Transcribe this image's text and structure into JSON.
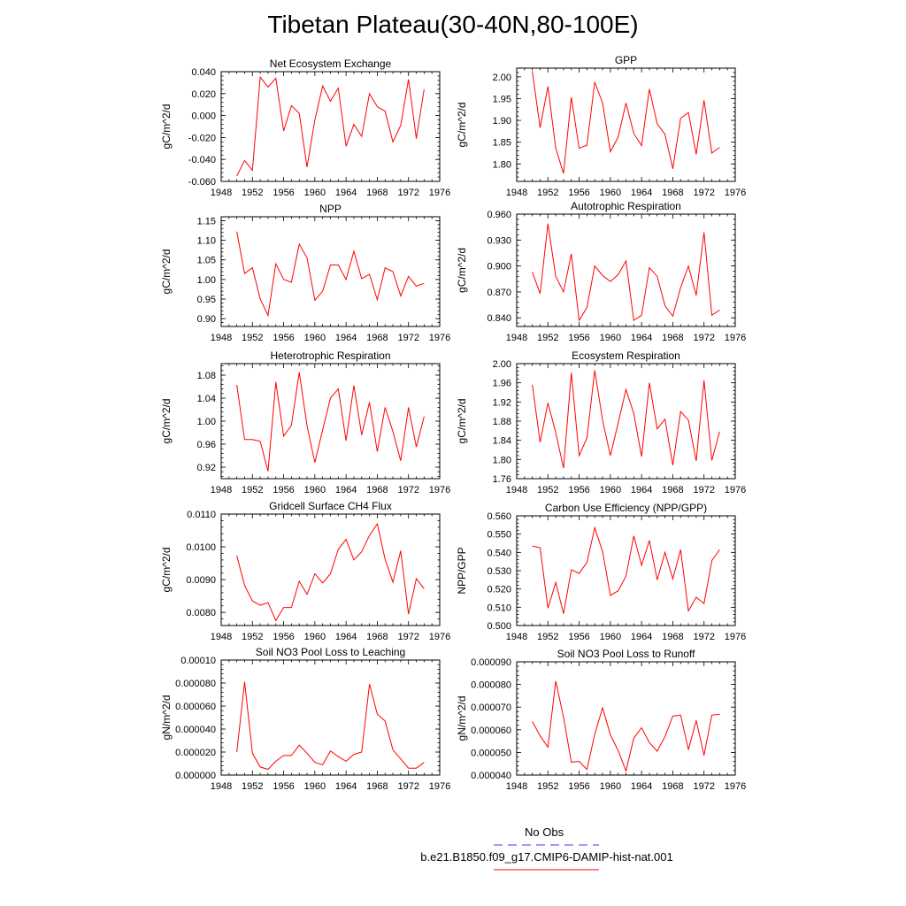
{
  "title": "Tibetan Plateau(30-40N,80-100E)",
  "legend": {
    "obs_label": "No Obs",
    "obs_color": "#3a3aff",
    "model_label": "b.e21.B1850.f09_g17.CMIP6-DAMIP-hist-nat.001",
    "model_color": "#ff0000"
  },
  "chart_data": [
    {
      "type": "line",
      "title": "Net Ecosystem Exchange",
      "ylabel": "gC/m^2/d",
      "xlim": [
        1948,
        1976
      ],
      "xticks": [
        1948,
        1952,
        1956,
        1960,
        1964,
        1968,
        1972,
        1976
      ],
      "ylim": [
        -0.06,
        0.04
      ],
      "yticks": [
        -0.06,
        -0.04,
        -0.02,
        0.0,
        0.02,
        0.04
      ],
      "ytick_labels": [
        "-0.060",
        "-0.040",
        "-0.020",
        "0.000",
        "0.020",
        "0.040"
      ],
      "x": [
        1950,
        1951,
        1952,
        1953,
        1954,
        1955,
        1956,
        1957,
        1958,
        1959,
        1960,
        1961,
        1962,
        1963,
        1964,
        1965,
        1966,
        1967,
        1968,
        1969,
        1970,
        1971,
        1972,
        1973,
        1974
      ],
      "series": [
        {
          "values": [
            -0.055,
            -0.041,
            -0.05,
            0.035,
            0.026,
            0.034,
            -0.014,
            0.009,
            0.002,
            -0.047,
            -0.004,
            0.027,
            0.013,
            0.025,
            -0.028,
            -0.008,
            -0.019,
            0.02,
            0.008,
            0.004,
            -0.024,
            -0.009,
            0.033,
            -0.021,
            0.024
          ]
        }
      ]
    },
    {
      "type": "line",
      "title": "GPP",
      "ylabel": "gC/m^2/d",
      "xlim": [
        1948,
        1976
      ],
      "xticks": [
        1948,
        1952,
        1956,
        1960,
        1964,
        1968,
        1972,
        1976
      ],
      "ylim": [
        1.76,
        2.02
      ],
      "yticks": [
        1.8,
        1.85,
        1.9,
        1.95,
        2.0
      ],
      "ytick_labels": [
        "1.80",
        "1.85",
        "1.90",
        "1.95",
        "2.00"
      ],
      "x": [
        1950,
        1951,
        1952,
        1953,
        1954,
        1955,
        1956,
        1957,
        1958,
        1959,
        1960,
        1961,
        1962,
        1963,
        1964,
        1965,
        1966,
        1967,
        1968,
        1969,
        1970,
        1971,
        1972,
        1973,
        1974
      ],
      "series": [
        {
          "values": [
            2.013,
            1.883,
            1.978,
            1.836,
            1.778,
            1.953,
            1.836,
            1.843,
            1.988,
            1.94,
            1.828,
            1.862,
            1.94,
            1.87,
            1.842,
            1.972,
            1.892,
            1.868,
            1.789,
            1.905,
            1.918,
            1.822,
            1.946,
            1.825,
            1.838
          ]
        }
      ]
    },
    {
      "type": "line",
      "title": "NPP",
      "ylabel": "gC/m^2/d",
      "xlim": [
        1948,
        1976
      ],
      "xticks": [
        1948,
        1952,
        1956,
        1960,
        1964,
        1968,
        1972,
        1976
      ],
      "ylim": [
        0.88,
        1.16
      ],
      "yticks": [
        0.9,
        0.95,
        1.0,
        1.05,
        1.1,
        1.15
      ],
      "ytick_labels": [
        "0.90",
        "0.95",
        "1.00",
        "1.05",
        "1.10",
        "1.15"
      ],
      "x": [
        1950,
        1951,
        1952,
        1953,
        1954,
        1955,
        1956,
        1957,
        1958,
        1959,
        1960,
        1961,
        1962,
        1963,
        1964,
        1965,
        1966,
        1967,
        1968,
        1969,
        1970,
        1971,
        1972,
        1973,
        1974
      ],
      "series": [
        {
          "values": [
            1.122,
            1.015,
            1.03,
            0.95,
            0.908,
            1.04,
            1.0,
            0.993,
            1.09,
            1.055,
            0.947,
            0.97,
            1.037,
            1.037,
            1.0,
            1.072,
            1.002,
            1.013,
            0.948,
            1.03,
            1.02,
            0.958,
            1.008,
            0.983,
            0.99
          ]
        }
      ]
    },
    {
      "type": "line",
      "title": "Autotrophic Respiration",
      "ylabel": "gC/m^2/d",
      "xlim": [
        1948,
        1976
      ],
      "xticks": [
        1948,
        1952,
        1956,
        1960,
        1964,
        1968,
        1972,
        1976
      ],
      "ylim": [
        0.83,
        0.96
      ],
      "yticks": [
        0.84,
        0.87,
        0.9,
        0.93,
        0.96
      ],
      "ytick_labels": [
        "0.840",
        "0.870",
        "0.900",
        "0.930",
        "0.960"
      ],
      "x": [
        1950,
        1951,
        1952,
        1953,
        1954,
        1955,
        1956,
        1957,
        1958,
        1959,
        1960,
        1961,
        1962,
        1963,
        1964,
        1965,
        1966,
        1967,
        1968,
        1969,
        1970,
        1971,
        1972,
        1973,
        1974
      ],
      "series": [
        {
          "values": [
            0.893,
            0.868,
            0.949,
            0.888,
            0.87,
            0.914,
            0.837,
            0.852,
            0.9,
            0.889,
            0.882,
            0.89,
            0.906,
            0.837,
            0.843,
            0.898,
            0.888,
            0.854,
            0.842,
            0.875,
            0.9,
            0.866,
            0.939,
            0.843,
            0.849
          ]
        }
      ]
    },
    {
      "type": "line",
      "title": "Heterotrophic Respiration",
      "ylabel": "gC/m^2/d",
      "xlim": [
        1948,
        1976
      ],
      "xticks": [
        1948,
        1952,
        1956,
        1960,
        1964,
        1968,
        1972,
        1976
      ],
      "ylim": [
        0.9,
        1.1
      ],
      "yticks": [
        0.92,
        0.96,
        1.0,
        1.04,
        1.08
      ],
      "ytick_labels": [
        "0.92",
        "0.96",
        "1.00",
        "1.04",
        "1.08"
      ],
      "x": [
        1950,
        1951,
        1952,
        1953,
        1954,
        1955,
        1956,
        1957,
        1958,
        1959,
        1960,
        1961,
        1962,
        1963,
        1964,
        1965,
        1966,
        1967,
        1968,
        1969,
        1970,
        1971,
        1972,
        1973,
        1974
      ],
      "series": [
        {
          "values": [
            1.063,
            0.968,
            0.968,
            0.965,
            0.913,
            1.068,
            0.974,
            0.993,
            1.085,
            0.992,
            0.928,
            0.985,
            1.04,
            1.056,
            0.966,
            1.062,
            0.976,
            1.033,
            0.947,
            1.024,
            0.982,
            0.931,
            1.024,
            0.955,
            1.008
          ]
        }
      ]
    },
    {
      "type": "line",
      "title": "Ecosystem Respiration",
      "ylabel": "gC/m^2/d",
      "xlim": [
        1948,
        1976
      ],
      "xticks": [
        1948,
        1952,
        1956,
        1960,
        1964,
        1968,
        1972,
        1976
      ],
      "ylim": [
        1.76,
        2.0
      ],
      "yticks": [
        1.76,
        1.8,
        1.84,
        1.88,
        1.92,
        1.96,
        2.0
      ],
      "ytick_labels": [
        "1.76",
        "1.80",
        "1.84",
        "1.88",
        "1.92",
        "1.96",
        "2.00"
      ],
      "x": [
        1950,
        1951,
        1952,
        1953,
        1954,
        1955,
        1956,
        1957,
        1958,
        1959,
        1960,
        1961,
        1962,
        1963,
        1964,
        1965,
        1966,
        1967,
        1968,
        1969,
        1970,
        1971,
        1972,
        1973,
        1974
      ],
      "series": [
        {
          "values": [
            1.956,
            1.836,
            1.918,
            1.856,
            1.782,
            1.981,
            1.808,
            1.845,
            1.986,
            1.882,
            1.808,
            1.876,
            1.946,
            1.896,
            1.806,
            1.96,
            1.864,
            1.884,
            1.788,
            1.9,
            1.882,
            1.797,
            1.965,
            1.798,
            1.858
          ]
        }
      ]
    },
    {
      "type": "line",
      "title": "Gridcell Surface CH4 Flux",
      "ylabel": "gC/m^2/d",
      "xlim": [
        1948,
        1976
      ],
      "xticks": [
        1948,
        1952,
        1956,
        1960,
        1964,
        1968,
        1972,
        1976
      ],
      "ylim": [
        0.0076,
        0.011
      ],
      "yticks": [
        0.008,
        0.009,
        0.01,
        0.011
      ],
      "ytick_labels": [
        "0.0080",
        "0.0090",
        "0.0100",
        "0.0110"
      ],
      "x": [
        1950,
        1951,
        1952,
        1953,
        1954,
        1955,
        1956,
        1957,
        1958,
        1959,
        1960,
        1961,
        1962,
        1963,
        1964,
        1965,
        1966,
        1967,
        1968,
        1969,
        1970,
        1971,
        1972,
        1973,
        1974
      ],
      "series": [
        {
          "values": [
            0.00973,
            0.00882,
            0.00835,
            0.00822,
            0.0083,
            0.00775,
            0.00815,
            0.00815,
            0.00895,
            0.00855,
            0.00918,
            0.0089,
            0.00918,
            0.00992,
            0.01023,
            0.0096,
            0.00985,
            0.01035,
            0.0107,
            0.00962,
            0.00892,
            0.00988,
            0.00795,
            0.00903,
            0.00872
          ]
        }
      ]
    },
    {
      "type": "line",
      "title": "Carbon Use Efficiency (NPP/GPP)",
      "ylabel": "NPP/GPP",
      "xlim": [
        1948,
        1976
      ],
      "xticks": [
        1948,
        1952,
        1956,
        1960,
        1964,
        1968,
        1972,
        1976
      ],
      "ylim": [
        0.5,
        0.56
      ],
      "yticks": [
        0.5,
        0.51,
        0.52,
        0.53,
        0.54,
        0.55,
        0.56
      ],
      "ytick_labels": [
        "0.500",
        "0.510",
        "0.520",
        "0.530",
        "0.540",
        "0.550",
        "0.560"
      ],
      "x": [
        1950,
        1951,
        1952,
        1953,
        1954,
        1955,
        1956,
        1957,
        1958,
        1959,
        1960,
        1961,
        1962,
        1963,
        1964,
        1965,
        1966,
        1967,
        1968,
        1969,
        1970,
        1971,
        1972,
        1973,
        1974
      ],
      "series": [
        {
          "values": [
            0.5435,
            0.5425,
            0.5095,
            0.5235,
            0.5065,
            0.5305,
            0.5285,
            0.5345,
            0.5535,
            0.5405,
            0.5165,
            0.519,
            0.527,
            0.549,
            0.533,
            0.5465,
            0.525,
            0.54,
            0.5255,
            0.5415,
            0.508,
            0.5155,
            0.512,
            0.5355,
            0.5415
          ]
        }
      ]
    },
    {
      "type": "line",
      "title": "Soil NO3 Pool Loss to Leaching",
      "ylabel": "gN/m^2/d",
      "xlim": [
        1948,
        1976
      ],
      "xticks": [
        1948,
        1952,
        1956,
        1960,
        1964,
        1968,
        1972,
        1976
      ],
      "ylim": [
        0,
        0.0001
      ],
      "yticks": [
        0,
        2e-05,
        4e-05,
        6e-05,
        8e-05,
        0.0001
      ],
      "ytick_labels": [
        "0.000000",
        "0.000020",
        "0.000040",
        "0.000060",
        "0.000080",
        "0.00010"
      ],
      "x": [
        1950,
        1951,
        1952,
        1953,
        1954,
        1955,
        1956,
        1957,
        1958,
        1959,
        1960,
        1961,
        1962,
        1963,
        1964,
        1965,
        1966,
        1967,
        1968,
        1969,
        1970,
        1971,
        1972,
        1973,
        1974
      ],
      "series": [
        {
          "values": [
            2e-05,
            8.1e-05,
            1.9e-05,
            7e-06,
            5e-06,
            1.2e-05,
            1.7e-05,
            1.7e-05,
            2.6e-05,
            1.9e-05,
            1.1e-05,
            9e-06,
            2.1e-05,
            1.6e-05,
            1.2e-05,
            1.8e-05,
            2e-05,
            7.9e-05,
            5.3e-05,
            4.7e-05,
            2.2e-05,
            1.4e-05,
            6e-06,
            6e-06,
            1.1e-05
          ]
        }
      ]
    },
    {
      "type": "line",
      "title": "Soil NO3 Pool Loss to Runoff",
      "ylabel": "gN/m^2/d",
      "xlim": [
        1948,
        1976
      ],
      "xticks": [
        1948,
        1952,
        1956,
        1960,
        1964,
        1968,
        1972,
        1976
      ],
      "ylim": [
        4e-05,
        9e-05
      ],
      "yticks": [
        4e-05,
        5e-05,
        6e-05,
        7e-05,
        8e-05,
        9e-05
      ],
      "ytick_labels": [
        "0.000040",
        "0.000050",
        "0.000060",
        "0.000070",
        "0.000080",
        "0.000090"
      ],
      "x": [
        1950,
        1951,
        1952,
        1953,
        1954,
        1955,
        1956,
        1957,
        1958,
        1959,
        1960,
        1961,
        1962,
        1963,
        1964,
        1965,
        1966,
        1967,
        1968,
        1969,
        1970,
        1971,
        1972,
        1973,
        1974
      ],
      "series": [
        {
          "values": [
            6.37e-05,
            5.73e-05,
            5.23e-05,
            8.15e-05,
            6.55e-05,
            4.57e-05,
            4.6e-05,
            4.25e-05,
            5.8e-05,
            6.97e-05,
            5.78e-05,
            5.08e-05,
            4.18e-05,
            5.63e-05,
            6.09e-05,
            5.43e-05,
            5.05e-05,
            5.7e-05,
            6.6e-05,
            6.65e-05,
            5.12e-05,
            6.41e-05,
            4.87e-05,
            6.65e-05,
            6.68e-05
          ]
        }
      ]
    }
  ]
}
